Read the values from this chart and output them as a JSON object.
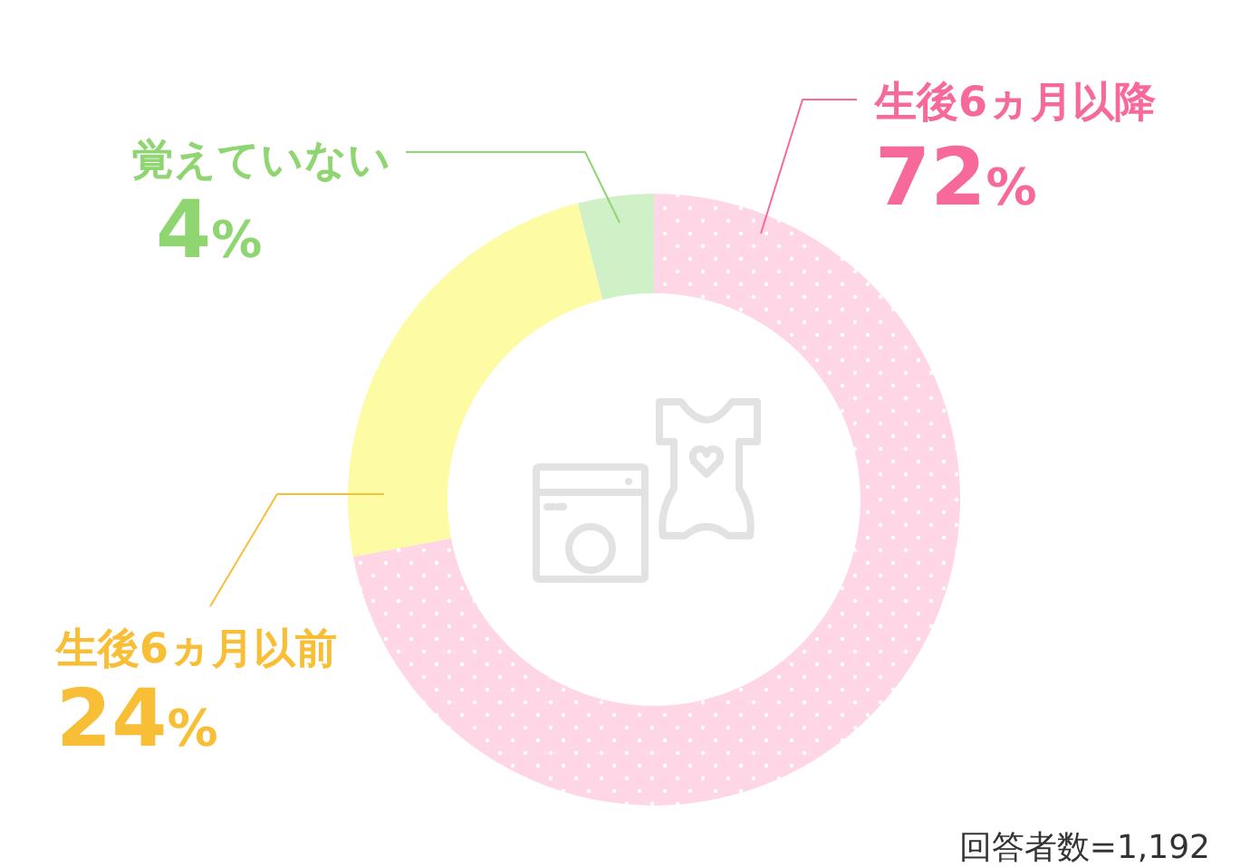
{
  "chart_data": {
    "type": "donut",
    "categories": [
      "生後6ヵ月以降",
      "生後6ヵ月以前",
      "覚えていない"
    ],
    "values": [
      72,
      24,
      4
    ],
    "colors": [
      "#ffd6e6",
      "#fdfba4",
      "#d0f0c8"
    ],
    "value_labels": [
      "72%",
      "24%",
      "4%"
    ],
    "annotations": [
      "回答者数=1,192"
    ]
  }
}
